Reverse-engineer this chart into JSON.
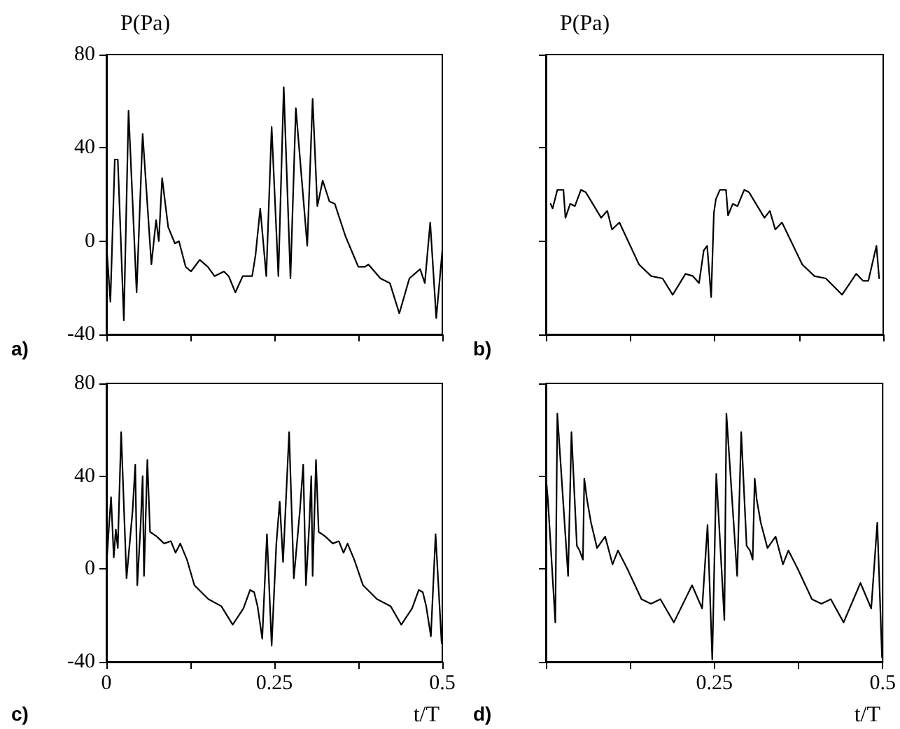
{
  "chart_data": [
    {
      "type": "line",
      "ylabel": "P(Pa)",
      "annotations": [
        "a)"
      ],
      "xlim": [
        0,
        0.5
      ],
      "ylim": [
        -40,
        80
      ],
      "xticks": [
        {
          "value": 0,
          "label": null
        },
        {
          "value": 0.125,
          "label": null
        },
        {
          "value": 0.25,
          "label": null
        },
        {
          "value": 0.375,
          "label": null
        },
        {
          "value": 0.5,
          "label": null
        }
      ],
      "yticks": [
        -40,
        0,
        40,
        80
      ],
      "tick_labels": "y",
      "marker": "none",
      "line_style": "solid",
      "x": [
        0,
        0.006,
        0.0125,
        0.017,
        0.026,
        0.033,
        0.045,
        0.054,
        0.067,
        0.074,
        0.078,
        0.083,
        0.092,
        0.102,
        0.108,
        0.118,
        0.126,
        0.139,
        0.151,
        0.161,
        0.175,
        0.182,
        0.192,
        0.203,
        0.217,
        0.222,
        0.229,
        0.238,
        0.246,
        0.256,
        0.264,
        0.274,
        0.282,
        0.299,
        0.307,
        0.314,
        0.322,
        0.332,
        0.34,
        0.356,
        0.375,
        0.385,
        0.39,
        0.408,
        0.422,
        0.436,
        0.451,
        0.467,
        0.474,
        0.482,
        0.491,
        0.5
      ],
      "series": [
        {
          "color": "#000000",
          "values": [
            -1,
            -26,
            35,
            35,
            -34,
            56,
            -22,
            46,
            -10,
            9,
            0,
            27,
            6,
            -1,
            0,
            -11,
            -13,
            -8,
            -11,
            -15,
            -13,
            -15,
            -22,
            -15,
            -15,
            -6,
            14,
            -15,
            49,
            -15,
            66,
            -16,
            57,
            -2,
            61,
            15,
            26,
            17,
            16,
            2,
            -11,
            -11,
            -10,
            -16,
            -18,
            -31,
            -16,
            -12,
            -18,
            8,
            -33,
            -4
          ]
        }
      ]
    },
    {
      "type": "line",
      "ylabel": "P(Pa)",
      "annotations": [
        "b)"
      ],
      "xlim": [
        0,
        0.5
      ],
      "ylim": [
        -40,
        80
      ],
      "xticks": [
        {
          "value": 0,
          "label": null
        },
        {
          "value": 0.125,
          "label": null
        },
        {
          "value": 0.25,
          "label": null
        },
        {
          "value": 0.375,
          "label": null
        },
        {
          "value": 0.5,
          "label": null
        }
      ],
      "yticks": [
        {
          "value": -40,
          "label": null
        },
        {
          "value": 0,
          "label": null
        },
        {
          "value": 40,
          "label": null
        },
        {
          "value": 80,
          "label": null
        }
      ],
      "tick_labels": false,
      "marker": "none",
      "line_style": "solid",
      "x": [
        0.007,
        0.01,
        0.017,
        0.026,
        0.029,
        0.036,
        0.043,
        0.052,
        0.059,
        0.082,
        0.091,
        0.098,
        0.109,
        0.138,
        0.156,
        0.173,
        0.188,
        0.207,
        0.218,
        0.227,
        0.234,
        0.239,
        0.245,
        0.249,
        0.252,
        0.258,
        0.267,
        0.27,
        0.277,
        0.284,
        0.294,
        0.301,
        0.324,
        0.332,
        0.34,
        0.35,
        0.38,
        0.398,
        0.415,
        0.439,
        0.46,
        0.47,
        0.478,
        0.49,
        0.494
      ],
      "series": [
        {
          "color": "#000000",
          "values": [
            16,
            14,
            22,
            22,
            10,
            16,
            15,
            22,
            21,
            10,
            13,
            5,
            8,
            -10,
            -15,
            -16,
            -23,
            -14,
            -15,
            -18,
            -4,
            -2,
            -24,
            12,
            18,
            22,
            22,
            11,
            16,
            15,
            22,
            21,
            10,
            13,
            5,
            8,
            -10,
            -15,
            -16,
            -23,
            -14,
            -17,
            -17,
            -2,
            -16
          ]
        }
      ]
    },
    {
      "type": "line",
      "xlabel": "t/T",
      "annotations": [
        "c)"
      ],
      "xlim": [
        0,
        0.5
      ],
      "ylim": [
        -40,
        80
      ],
      "xticks": [
        0,
        {
          "value": 0.125,
          "label": null
        },
        0.25,
        {
          "value": 0.375,
          "label": null
        },
        0.5
      ],
      "yticks": [
        -40,
        0,
        40,
        80
      ],
      "marker": "none",
      "line_style": "solid",
      "x": [
        0,
        0.004,
        0.007,
        0.011,
        0.014,
        0.017,
        0.022,
        0.03,
        0.039,
        0.043,
        0.046,
        0.051,
        0.054,
        0.056,
        0.061,
        0.065,
        0.075,
        0.086,
        0.096,
        0.103,
        0.11,
        0.12,
        0.131,
        0.152,
        0.171,
        0.188,
        0.204,
        0.214,
        0.22,
        0.225,
        0.232,
        0.239,
        0.246,
        0.253,
        0.258,
        0.263,
        0.272,
        0.279,
        0.288,
        0.293,
        0.297,
        0.302,
        0.305,
        0.307,
        0.312,
        0.316,
        0.326,
        0.337,
        0.346,
        0.353,
        0.359,
        0.369,
        0.382,
        0.403,
        0.423,
        0.439,
        0.455,
        0.465,
        0.471,
        0.476,
        0.483,
        0.49,
        0.499
      ],
      "series": [
        {
          "color": "#000000",
          "values": [
            1,
            19,
            31,
            5,
            17,
            9,
            59,
            -4,
            25,
            45,
            -7,
            19,
            40,
            -3,
            47,
            16,
            14,
            11,
            12,
            7,
            11,
            4,
            -7,
            -13,
            -16,
            -24,
            -17,
            -9,
            -10,
            -16,
            -30,
            15,
            -33,
            11,
            29,
            3,
            59,
            -4,
            25,
            45,
            -7,
            19,
            40,
            -3,
            47,
            16,
            14,
            11,
            12,
            7,
            11,
            4,
            -7,
            -13,
            -16,
            -24,
            -17,
            -9,
            -10,
            -16,
            -29,
            15,
            -32
          ]
        }
      ]
    },
    {
      "type": "line",
      "xlabel": "t/T",
      "annotations": [
        "d)"
      ],
      "xlim": [
        0,
        0.5
      ],
      "ylim": [
        -40,
        80
      ],
      "xticks": [
        {
          "value": 0,
          "label": null
        },
        {
          "value": 0.125,
          "label": null
        },
        0.25,
        {
          "value": 0.375,
          "label": null
        },
        0.5
      ],
      "yticks": [
        {
          "value": -40,
          "label": null
        },
        {
          "value": 0,
          "label": null
        },
        {
          "value": 40,
          "label": null
        },
        {
          "value": 80,
          "label": null
        }
      ],
      "tick_labels": "x",
      "marker": "none",
      "line_style": "solid",
      "x": [
        0,
        0.003,
        0.014,
        0.017,
        0.033,
        0.038,
        0.046,
        0.05,
        0.055,
        0.057,
        0.061,
        0.067,
        0.076,
        0.088,
        0.099,
        0.107,
        0.121,
        0.142,
        0.156,
        0.17,
        0.19,
        0.217,
        0.232,
        0.24,
        0.247,
        0.253,
        0.265,
        0.268,
        0.284,
        0.29,
        0.298,
        0.303,
        0.307,
        0.31,
        0.313,
        0.319,
        0.329,
        0.341,
        0.352,
        0.36,
        0.374,
        0.395,
        0.409,
        0.423,
        0.442,
        0.467,
        0.483,
        0.492,
        0.499
      ],
      "series": [
        {
          "color": "#000000",
          "values": [
            40,
            30,
            -23,
            67,
            -3,
            59,
            10,
            8,
            4,
            39,
            30,
            20,
            9,
            14,
            2,
            8,
            0,
            -13,
            -15,
            -13,
            -23,
            -7,
            -17,
            19,
            -39,
            41,
            -22,
            67,
            -3,
            59,
            10,
            8,
            4,
            39,
            30,
            20,
            9,
            14,
            2,
            8,
            0,
            -13,
            -15,
            -13,
            -23,
            -6,
            -17,
            20,
            -38
          ]
        }
      ]
    }
  ]
}
